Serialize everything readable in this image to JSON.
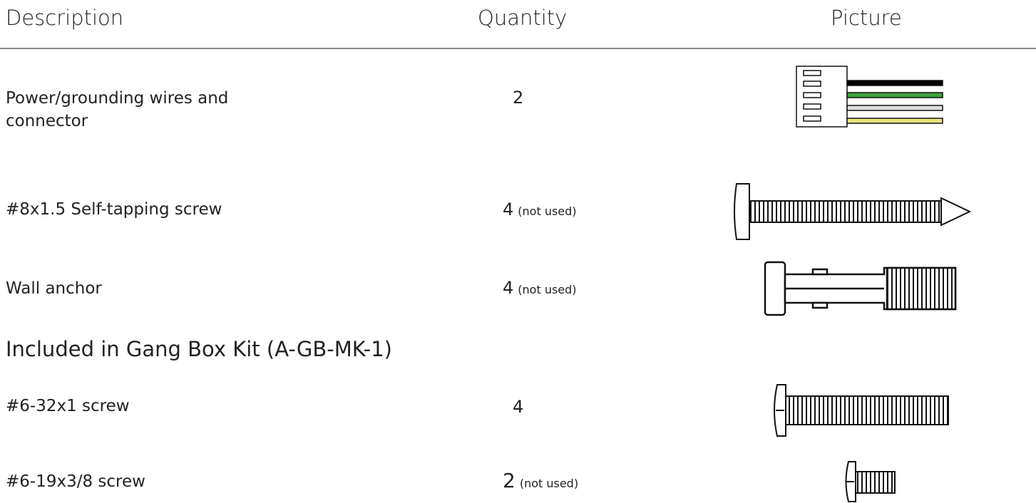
{
  "table": {
    "headers": [
      "Description",
      "Quantity",
      "Picture"
    ],
    "rows": [
      {
        "description": "Power/grounding wires and connector",
        "quantity": 2
      },
      {
        "description": "#8x1.5 Self-tapping screw",
        "quantity": 4,
        "note": "(not used)"
      },
      {
        "description": "Wall anchor",
        "quantity": 4,
        "note": "(not used)"
      }
    ]
  },
  "section": {
    "title": "Included in Gang Box Kit (A-GB-MK-1)",
    "rows": [
      {
        "description": "#6-32x1 screw",
        "quantity": 4
      },
      {
        "description": "#6-19x3/8 screw",
        "quantity": 2,
        "note": "(not used)"
      }
    ]
  }
}
